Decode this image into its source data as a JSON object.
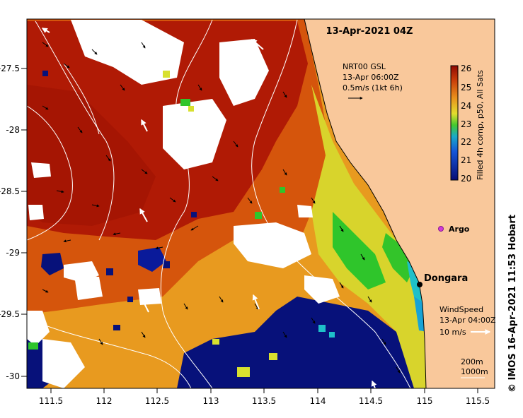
{
  "title": "13-Apr-2021 04Z",
  "y_ticks": [
    "-27.5",
    "-28",
    "-28.5",
    "-29",
    "-29.5",
    "-30"
  ],
  "x_ticks": [
    "111.5",
    "112",
    "112.5",
    "113",
    "113.5",
    "114",
    "114.5",
    "115",
    "115.5"
  ],
  "current_legend": {
    "line1": "NRT00 GSL",
    "line2": "13-Apr 06:00Z",
    "line3": "0.5m/s (1kt 6h)"
  },
  "colorbar": {
    "ticks": [
      "26",
      "25",
      "24",
      "23",
      "22",
      "21",
      "20"
    ],
    "label": "Filled 4h comp, p50, All Sats"
  },
  "argo_label": "Argo",
  "place_label": "Dongara",
  "wind_legend": {
    "line1": "WindSpeed",
    "line2": "13-Apr 04:00Z",
    "line3": "10 m/s"
  },
  "contours": {
    "line1": "200m",
    "line2": "1000m"
  },
  "credit": "© IMOS 16-Apr-2021 11:53 Hobart",
  "colors": {
    "land": "#f9c89b",
    "hot": "#b01a05",
    "warm": "#d5550c",
    "mid": "#e89a1f",
    "cool": "#07117a",
    "green": "#2fc52b",
    "argo": "#d23ad8"
  }
}
